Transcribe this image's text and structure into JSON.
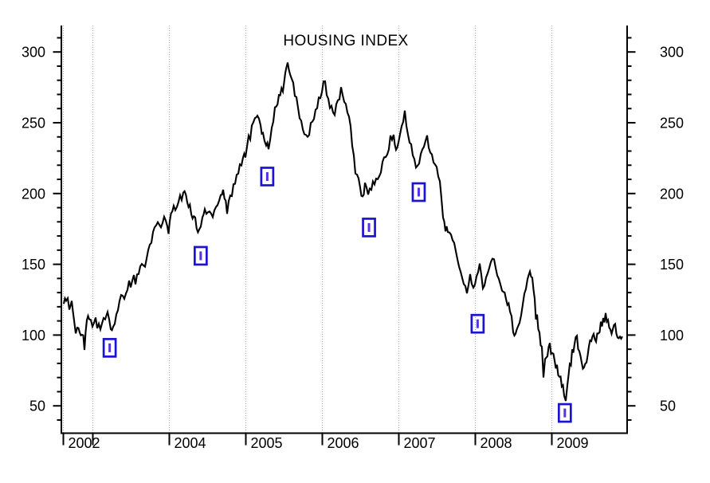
{
  "chart_data": {
    "type": "line",
    "title": "HOUSING INDEX",
    "legend": "none",
    "grid": "vertical-dotted-yearly",
    "x_axis": {
      "unit": "year",
      "range_years": [
        2002.58,
        2009.95
      ],
      "tick_years": [
        2002,
        2003,
        2004,
        2005,
        2006,
        2007,
        2008,
        2009
      ],
      "labels": [
        {
          "year": 2002,
          "text": "2002"
        },
        {
          "year": 2004,
          "text": "2004"
        },
        {
          "year": 2005,
          "text": "2005"
        },
        {
          "year": 2006,
          "text": "2006"
        },
        {
          "year": 2007,
          "text": "2007"
        },
        {
          "year": 2008,
          "text": "2008"
        },
        {
          "year": 2009,
          "text": "2009"
        }
      ]
    },
    "y_axis": {
      "range": [
        30,
        317
      ],
      "major_tick_values": [
        50,
        100,
        150,
        200,
        250,
        300
      ],
      "major_tick_labels": [
        "50",
        "100",
        "150",
        "200",
        "250",
        "300"
      ],
      "minor_tick_step": 10,
      "sides": [
        "left",
        "right"
      ]
    },
    "series": [
      {
        "name": "HOUSING INDEX",
        "color": "#000000",
        "points": [
          [
            2002.62,
            122
          ],
          [
            2002.651,
            127
          ],
          [
            2002.693,
            120
          ],
          [
            2002.724,
            123
          ],
          [
            2002.755,
            112
          ],
          [
            2002.797,
            107
          ],
          [
            2002.828,
            99
          ],
          [
            2002.859,
            103
          ],
          [
            2002.891,
            92
          ],
          [
            2002.922,
            110
          ],
          [
            2002.953,
            113
          ],
          [
            2002.995,
            108
          ],
          [
            2003.036,
            110
          ],
          [
            2003.078,
            105
          ],
          [
            2003.12,
            108
          ],
          [
            2003.161,
            112
          ],
          [
            2003.193,
            114
          ],
          [
            2003.234,
            104
          ],
          [
            2003.266,
            103
          ],
          [
            2003.307,
            112
          ],
          [
            2003.349,
            122
          ],
          [
            2003.391,
            130
          ],
          [
            2003.432,
            127
          ],
          [
            2003.474,
            136
          ],
          [
            2003.516,
            141
          ],
          [
            2003.557,
            138
          ],
          [
            2003.599,
            146
          ],
          [
            2003.641,
            151
          ],
          [
            2003.682,
            149
          ],
          [
            2003.724,
            158
          ],
          [
            2003.766,
            168
          ],
          [
            2003.807,
            174
          ],
          [
            2003.849,
            178
          ],
          [
            2003.891,
            175
          ],
          [
            2003.932,
            182
          ],
          [
            2003.974,
            179
          ],
          [
            2004.005,
            180
          ],
          [
            2004.057,
            190
          ],
          [
            2004.099,
            192
          ],
          [
            2004.141,
            197
          ],
          [
            2004.182,
            203
          ],
          [
            2004.234,
            195
          ],
          [
            2004.286,
            188
          ],
          [
            2004.339,
            180
          ],
          [
            2004.391,
            173
          ],
          [
            2004.432,
            183
          ],
          [
            2004.464,
            191
          ],
          [
            2004.505,
            186
          ],
          [
            2004.547,
            183
          ],
          [
            2004.589,
            188
          ],
          [
            2004.63,
            193
          ],
          [
            2004.672,
            199
          ],
          [
            2004.703,
            204
          ],
          [
            2004.755,
            190
          ],
          [
            2004.797,
            197
          ],
          [
            2004.839,
            205
          ],
          [
            2004.88,
            212
          ],
          [
            2004.922,
            218
          ],
          [
            2004.964,
            224
          ],
          [
            2004.995,
            228
          ],
          [
            2005.036,
            238
          ],
          [
            2005.078,
            247
          ],
          [
            2005.12,
            252
          ],
          [
            2005.151,
            255
          ],
          [
            2005.193,
            247
          ],
          [
            2005.224,
            242
          ],
          [
            2005.266,
            235
          ],
          [
            2005.297,
            231
          ],
          [
            2005.339,
            247
          ],
          [
            2005.38,
            260
          ],
          [
            2005.432,
            268
          ],
          [
            2005.484,
            275
          ],
          [
            2005.516,
            285
          ],
          [
            2005.547,
            293
          ],
          [
            2005.578,
            283
          ],
          [
            2005.62,
            276
          ],
          [
            2005.661,
            266
          ],
          [
            2005.703,
            256
          ],
          [
            2005.745,
            247
          ],
          [
            2005.786,
            240
          ],
          [
            2005.807,
            237
          ],
          [
            2005.849,
            247
          ],
          [
            2005.891,
            254
          ],
          [
            2005.932,
            261
          ],
          [
            2005.974,
            270
          ],
          [
            2006.016,
            278
          ],
          [
            2006.036,
            280
          ],
          [
            2006.078,
            265
          ],
          [
            2006.12,
            259
          ],
          [
            2006.161,
            257
          ],
          [
            2006.203,
            265
          ],
          [
            2006.245,
            274
          ],
          [
            2006.286,
            264
          ],
          [
            2006.328,
            259
          ],
          [
            2006.37,
            245
          ],
          [
            2006.411,
            228
          ],
          [
            2006.453,
            215
          ],
          [
            2006.495,
            205
          ],
          [
            2006.526,
            196
          ],
          [
            2006.557,
            207
          ],
          [
            2006.599,
            199
          ],
          [
            2006.641,
            203
          ],
          [
            2006.682,
            209
          ],
          [
            2006.724,
            213
          ],
          [
            2006.766,
            217
          ],
          [
            2006.807,
            223
          ],
          [
            2006.849,
            230
          ],
          [
            2006.891,
            238
          ],
          [
            2006.932,
            240
          ],
          [
            2006.964,
            233
          ],
          [
            2006.995,
            237
          ],
          [
            2007.036,
            248
          ],
          [
            2007.078,
            256
          ],
          [
            2007.12,
            243
          ],
          [
            2007.161,
            232
          ],
          [
            2007.203,
            222
          ],
          [
            2007.245,
            218
          ],
          [
            2007.286,
            227
          ],
          [
            2007.328,
            233
          ],
          [
            2007.37,
            239
          ],
          [
            2007.411,
            230
          ],
          [
            2007.453,
            222
          ],
          [
            2007.495,
            216
          ],
          [
            2007.536,
            210
          ],
          [
            2007.578,
            185
          ],
          [
            2007.609,
            172
          ],
          [
            2007.641,
            176
          ],
          [
            2007.682,
            172
          ],
          [
            2007.724,
            163
          ],
          [
            2007.766,
            152
          ],
          [
            2007.807,
            144
          ],
          [
            2007.849,
            133
          ],
          [
            2007.891,
            131
          ],
          [
            2007.932,
            142
          ],
          [
            2007.974,
            133
          ],
          [
            2008.016,
            141
          ],
          [
            2008.057,
            150
          ],
          [
            2008.099,
            135
          ],
          [
            2008.141,
            141
          ],
          [
            2008.182,
            148
          ],
          [
            2008.224,
            154
          ],
          [
            2008.266,
            149
          ],
          [
            2008.307,
            141
          ],
          [
            2008.349,
            133
          ],
          [
            2008.401,
            127
          ],
          [
            2008.453,
            117
          ],
          [
            2008.495,
            105
          ],
          [
            2008.526,
            99
          ],
          [
            2008.557,
            105
          ],
          [
            2008.599,
            117
          ],
          [
            2008.641,
            130
          ],
          [
            2008.682,
            140
          ],
          [
            2008.714,
            146
          ],
          [
            2008.745,
            139
          ],
          [
            2008.776,
            125
          ],
          [
            2008.807,
            112
          ],
          [
            2008.839,
            101
          ],
          [
            2008.87,
            90
          ],
          [
            2008.891,
            70
          ],
          [
            2008.911,
            82
          ],
          [
            2008.943,
            88
          ],
          [
            2008.974,
            92
          ],
          [
            2009.005,
            87
          ],
          [
            2009.036,
            82
          ],
          [
            2009.068,
            77
          ],
          [
            2009.099,
            72
          ],
          [
            2009.13,
            65
          ],
          [
            2009.161,
            59
          ],
          [
            2009.182,
            56
          ],
          [
            2009.203,
            65
          ],
          [
            2009.234,
            77
          ],
          [
            2009.266,
            87
          ],
          [
            2009.297,
            94
          ],
          [
            2009.328,
            97
          ],
          [
            2009.359,
            89
          ],
          [
            2009.391,
            81
          ],
          [
            2009.422,
            76
          ],
          [
            2009.453,
            81
          ],
          [
            2009.484,
            90
          ],
          [
            2009.516,
            97
          ],
          [
            2009.547,
            101
          ],
          [
            2009.578,
            98
          ],
          [
            2009.609,
            103
          ],
          [
            2009.641,
            107
          ],
          [
            2009.672,
            110
          ],
          [
            2009.703,
            114
          ],
          [
            2009.734,
            109
          ],
          [
            2009.766,
            104
          ],
          [
            2009.797,
            104
          ],
          [
            2009.828,
            108
          ],
          [
            2009.859,
            100
          ],
          [
            2009.891,
            96
          ],
          [
            2009.922,
            99
          ]
        ]
      }
    ],
    "event_markers": {
      "shape": "open-rect-vertical-tick",
      "stroke": "#1c12d2",
      "inner_stroke": "#5433e2",
      "points": [
        [
          2003.22,
          91
        ],
        [
          2004.41,
          156
        ],
        [
          2005.28,
          212
        ],
        [
          2006.61,
          176
        ],
        [
          2007.26,
          201
        ],
        [
          2008.03,
          108
        ],
        [
          2009.17,
          45
        ]
      ]
    }
  }
}
